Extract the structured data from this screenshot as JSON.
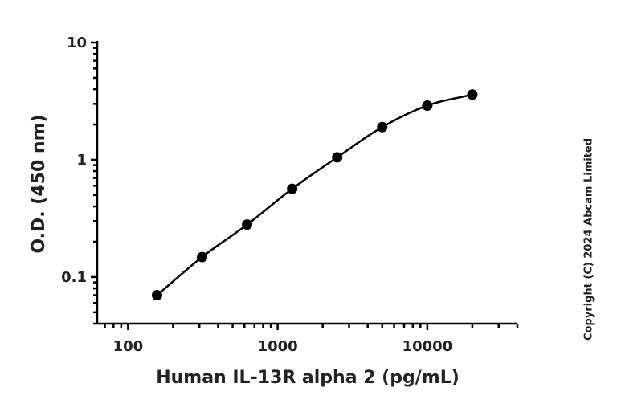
{
  "chart_data": {
    "type": "scatter",
    "title": "",
    "xlabel": "Human IL-13R alpha 2 (pg/mL)",
    "ylabel": "O.D. (450 nm)",
    "x_scale": "log",
    "y_scale": "log",
    "xlim": [
      63,
      40000
    ],
    "ylim": [
      0.04,
      10
    ],
    "x_ticks": [
      100,
      1000,
      10000
    ],
    "x_tick_labels": [
      "100",
      "1000",
      "10000"
    ],
    "y_ticks": [
      0.1,
      1,
      10
    ],
    "y_tick_labels": [
      "0.1",
      "1",
      "10"
    ],
    "grid": false,
    "legend": "none",
    "series": [
      {
        "x": [
          156.25,
          312.5,
          625,
          1250,
          2500,
          5000,
          10000,
          20000
        ],
        "y": [
          0.07,
          0.148,
          0.28,
          0.565,
          1.05,
          1.9,
          2.9,
          3.6
        ],
        "color": "#000000",
        "fit_curve": true
      }
    ]
  },
  "copyright": "Copyright (C) 2024 Abcam Limited"
}
